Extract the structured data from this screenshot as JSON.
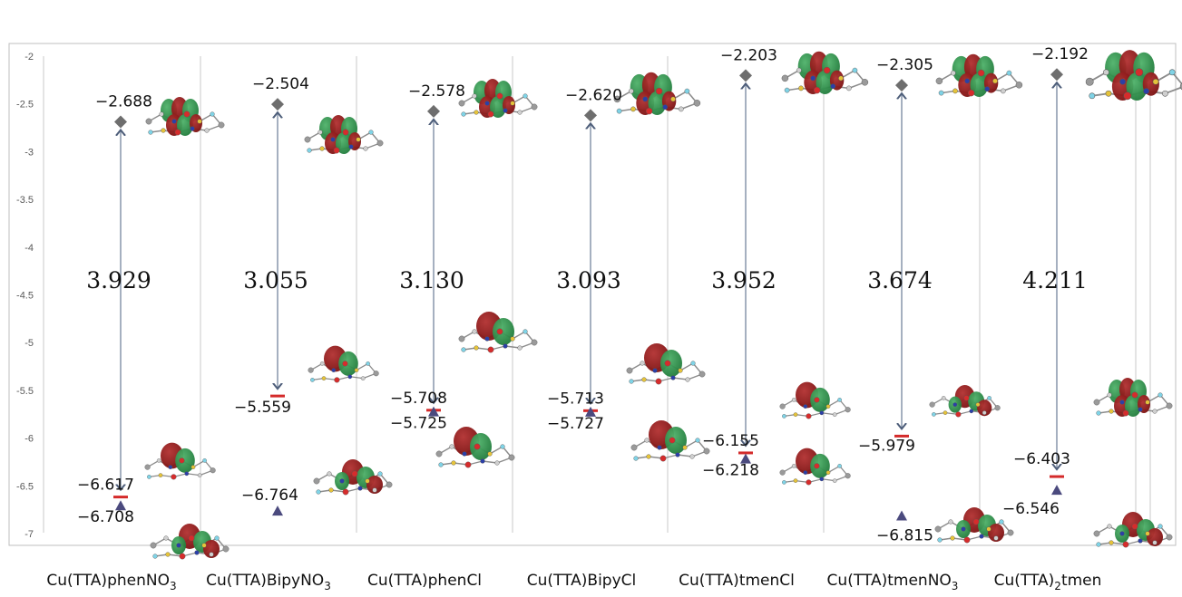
{
  "chart_data": {
    "type": "scatter",
    "title": "",
    "xlabel": "",
    "ylabel": "",
    "ylim": [
      -7,
      -2
    ],
    "yticks": [
      "-2",
      "-2.5",
      "-3",
      "-3.5",
      "-4",
      "-4.5",
      "-5",
      "-5.5",
      "-6",
      "-6.5",
      "-7"
    ],
    "grid": false,
    "legend": "none",
    "colors": {
      "lumo_marker": "#6e6e6e",
      "homo_bar": "#d42a2a",
      "homo_marker": "#4b4a7e",
      "arrow": "#7f8fa6",
      "axis": "#bfbfbf",
      "orbital_green": "#1f7a3a",
      "orbital_red": "#7a1010"
    },
    "categories": [
      {
        "name": "Cu(TTA)phenNO",
        "sub": "3",
        "tail": "",
        "lumo": -2.688,
        "lumo_label": "−2.688",
        "homo": -6.617,
        "homo_label": "−6.617",
        "homo_b": -6.708,
        "homo_b_label": "−6.708",
        "gap": "3.929"
      },
      {
        "name": "Cu(TTA)BipyNO",
        "sub": "3",
        "tail": "",
        "lumo": -2.504,
        "lumo_label": "−2.504",
        "homo": -5.559,
        "homo_label": "−5.559",
        "homo_b": -6.764,
        "homo_b_label": "−6.764",
        "gap": "3.055"
      },
      {
        "name": "Cu(TTA)phenCl",
        "sub": "",
        "tail": "",
        "lumo": -2.578,
        "lumo_label": "−2.578",
        "homo": -5.708,
        "homo_label": "−5.708",
        "homo_b": -5.725,
        "homo_b_label": "−5.725",
        "gap": "3.130"
      },
      {
        "name": "Cu(TTA)BipyCl",
        "sub": "",
        "tail": "",
        "lumo": -2.62,
        "lumo_label": "−2.620",
        "homo": -5.713,
        "homo_label": "−5.713",
        "homo_b": -5.727,
        "homo_b_label": "−5.727",
        "gap": "3.093"
      },
      {
        "name": "Cu(TTA)tmenCl",
        "sub": "",
        "tail": "",
        "lumo": -2.203,
        "lumo_label": "−2.203",
        "homo": -6.155,
        "homo_label": "−6.155",
        "homo_b": -6.218,
        "homo_b_label": "−6.218",
        "gap": "3.952"
      },
      {
        "name": "Cu(TTA)tmenNO",
        "sub": "3",
        "tail": "",
        "lumo": -2.305,
        "lumo_label": "−2.305",
        "homo": -5.979,
        "homo_label": "−5.979",
        "homo_b": -6.815,
        "homo_b_label": "−6.815",
        "gap": "3.674"
      },
      {
        "name": "Cu(TTA)",
        "sub": "2",
        "tail": "tmen",
        "lumo": -2.192,
        "lumo_label": "−2.192",
        "homo": -6.403,
        "homo_label": "−6.403",
        "homo_b": -6.546,
        "homo_b_label": "−6.546",
        "gap": "4.211"
      }
    ]
  }
}
